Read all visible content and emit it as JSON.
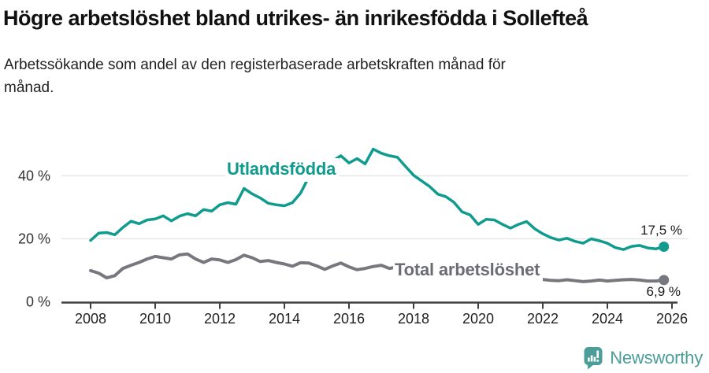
{
  "header": {
    "title": "Högre arbetslöshet bland utrikes- än inrikesfödda i Sollefteå",
    "subtitle": "Arbetssökande som andel av den registerbaserade arbetskraften månad för månad."
  },
  "chart": {
    "series_labels": {
      "utlandsfodda": "Utlandsfödda",
      "total": "Total arbetslöshet"
    },
    "end_labels": {
      "utlandsfodda": "17,5 %",
      "total": "6,9 %"
    }
  },
  "chart_data": {
    "type": "line",
    "title": "Högre arbetslöshet bland utrikes- än inrikesfödda i Sollefteå",
    "subtitle": "Arbetssökande som andel av den registerbaserade arbetskraften månad för månad.",
    "unit": "%",
    "grid": "horizontal",
    "legend": "inline-labels",
    "xlim": [
      2007.1,
      2026.4
    ],
    "ylim": [
      0,
      52
    ],
    "x_start": 2008.0,
    "x_step": 0.25,
    "x_ticks": [
      2008,
      2010,
      2012,
      2014,
      2016,
      2018,
      2020,
      2022,
      2024,
      2026
    ],
    "x_tick_labels": [
      "2008",
      "2010",
      "2012",
      "2014",
      "2016",
      "2018",
      "2020",
      "2022",
      "2024",
      "2026"
    ],
    "y_ticks": [
      {
        "value": 0,
        "label": "0 %"
      },
      {
        "value": 20,
        "label": "20 %"
      },
      {
        "value": 40,
        "label": "40 %"
      }
    ],
    "series": [
      {
        "name": "Utlandsfödda",
        "color": "#0f9b8e",
        "last_value": 17.5,
        "values": [
          19.5,
          21.8,
          22.0,
          21.3,
          23.6,
          25.6,
          24.8,
          26.0,
          26.3,
          27.3,
          25.7,
          27.2,
          28.0,
          27.3,
          29.3,
          28.8,
          30.8,
          31.5,
          31.0,
          36.0,
          34.3,
          33.0,
          31.3,
          30.8,
          30.5,
          31.5,
          34.5,
          39.5,
          42.5,
          44.2,
          44.8,
          46.4,
          44.1,
          45.5,
          43.8,
          48.5,
          47.2,
          46.4,
          45.9,
          43.0,
          40.2,
          38.4,
          36.6,
          34.2,
          33.4,
          31.6,
          28.6,
          27.6,
          24.6,
          26.2,
          26.0,
          24.6,
          23.4,
          24.6,
          25.5,
          23.2,
          21.6,
          20.4,
          19.6,
          20.2,
          19.2,
          18.6,
          20.0,
          19.4,
          18.6,
          17.2,
          16.6,
          17.6,
          17.9,
          17.1,
          16.8,
          17.5
        ]
      },
      {
        "name": "Total arbetslöshet",
        "color": "#77777f",
        "last_value": 6.9,
        "values": [
          9.9,
          9.1,
          7.6,
          8.3,
          10.6,
          11.6,
          12.5,
          13.6,
          14.4,
          14.0,
          13.6,
          14.9,
          15.2,
          13.6,
          12.5,
          13.6,
          13.3,
          12.5,
          13.4,
          14.8,
          14.0,
          12.8,
          13.1,
          12.5,
          12.0,
          11.3,
          12.4,
          12.3,
          11.4,
          10.3,
          11.4,
          12.3,
          11.1,
          10.2,
          10.6,
          11.2,
          11.6,
          10.6,
          11.1,
          10.6,
          10.4,
          9.9,
          9.6,
          9.4,
          9.1,
          8.8,
          8.6,
          8.4,
          8.6,
          8.9,
          8.7,
          8.3,
          8.0,
          7.7,
          7.5,
          7.3,
          7.1,
          6.8,
          6.7,
          7.0,
          6.7,
          6.4,
          6.6,
          6.9,
          6.6,
          6.8,
          7.0,
          7.1,
          6.9,
          6.6,
          6.6,
          6.9
        ]
      }
    ],
    "colors": {
      "utlandsfodda": "#0f9b8e",
      "total": "#77777f",
      "gridline": "#e3e3e3",
      "axis": "#3f3f3f",
      "text": "#1f1f1f"
    }
  },
  "footer": {
    "brand": "Newsworthy",
    "logo_icon": "newsworthy-speech-bubble-chart-icon",
    "brand_color": "#4a9d99"
  }
}
